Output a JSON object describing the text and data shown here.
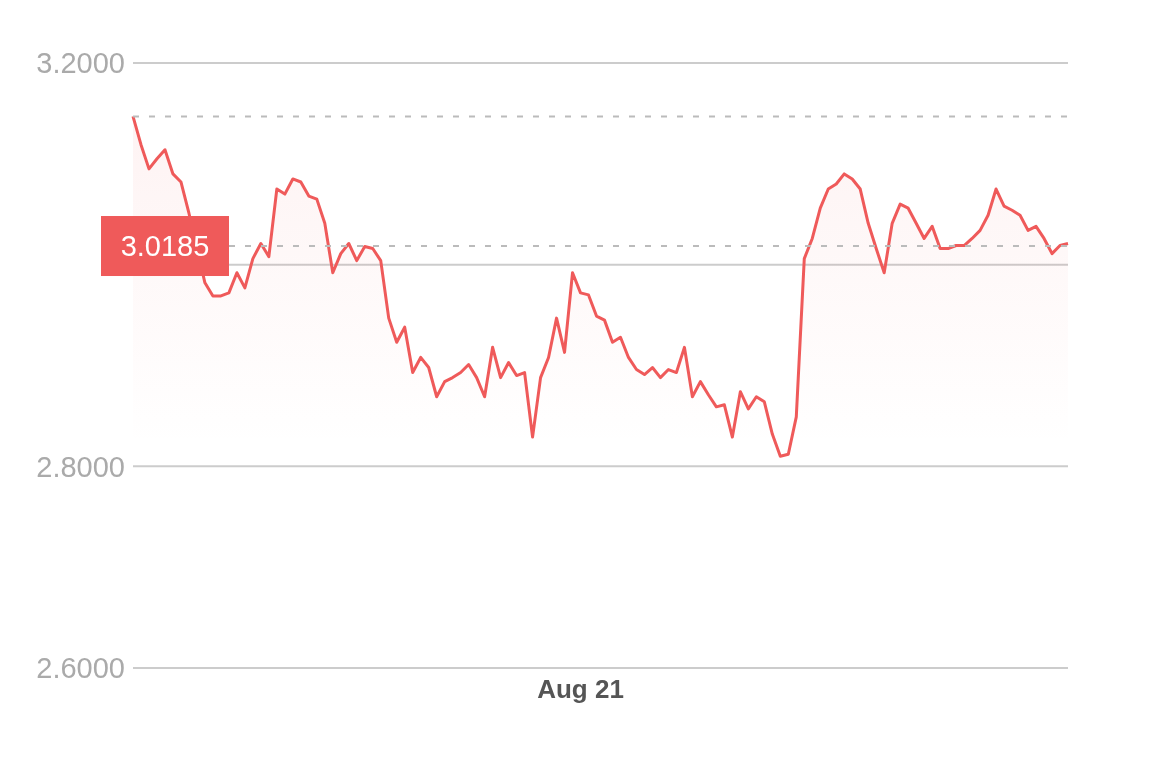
{
  "chart_data": {
    "type": "area",
    "categories": [
      null,
      null,
      null,
      null,
      null,
      null,
      null,
      null,
      null,
      null,
      null,
      null,
      null,
      null,
      null,
      null,
      null,
      null,
      null,
      null,
      null,
      null,
      null,
      null,
      null,
      null,
      null,
      null,
      null,
      null,
      null,
      null,
      null,
      null,
      null,
      null,
      null,
      null,
      null,
      null,
      null,
      null,
      null,
      null,
      null,
      null,
      null,
      null,
      null,
      null,
      null,
      null,
      null,
      null,
      null,
      null,
      "Aug 21",
      null,
      null,
      null,
      null,
      null,
      null,
      null,
      null,
      null,
      null,
      null,
      null,
      null,
      null,
      null,
      null,
      null,
      null,
      null,
      null,
      null,
      null,
      null,
      null,
      null,
      null,
      null,
      null,
      null,
      null,
      null,
      null,
      null,
      null,
      null,
      null,
      null,
      null,
      null,
      null,
      null,
      null,
      null,
      null,
      null,
      null,
      null,
      null,
      null,
      null,
      null,
      null,
      null,
      null,
      null,
      null,
      null,
      null,
      null,
      null,
      null
    ],
    "series": [
      {
        "color": "#ef5a5a",
        "values": [
          3.147,
          3.119,
          3.095,
          3.105,
          3.114,
          3.09,
          3.082,
          3.051,
          null,
          2.982,
          2.969,
          2.969,
          2.972,
          2.992,
          2.977,
          3.006,
          3.021,
          3.008,
          3.075,
          3.07,
          3.085,
          3.082,
          3.068,
          3.065,
          3.041,
          2.992,
          3.011,
          3.021,
          3.004,
          3.018,
          3.016,
          3.004,
          2.947,
          2.923,
          2.938,
          2.893,
          2.908,
          2.898,
          2.869,
          2.884,
          2.888,
          2.893,
          2.901,
          2.888,
          2.869,
          2.918,
          2.888,
          2.903,
          2.89,
          2.893,
          2.829,
          2.888,
          2.908,
          2.947,
          2.913,
          2.992,
          2.972,
          2.97,
          2.949,
          2.945,
          2.923,
          2.928,
          2.908,
          2.896,
          2.891,
          2.898,
          2.888,
          2.896,
          2.893,
          2.918,
          2.869,
          2.884,
          2.871,
          2.859,
          2.861,
          2.829,
          2.874,
          2.857,
          2.869,
          2.864,
          2.832,
          2.81,
          2.812,
          2.849,
          3.006,
          3.026,
          3.056,
          3.075,
          3.08,
          3.09,
          3.085,
          3.075,
          3.041,
          3.016,
          2.992,
          3.041,
          3.06,
          3.056,
          3.041,
          3.026,
          3.038,
          3.016,
          3.016,
          3.019,
          3.019,
          3.026,
          3.034,
          3.049,
          3.075,
          3.058,
          3.054,
          3.049,
          3.034,
          3.038,
          3.026,
          3.011,
          3.019,
          3.021
        ]
      }
    ],
    "ylim": [
      2.6,
      3.2
    ],
    "yticks": [
      {
        "value": 2.6,
        "label": "2.6000"
      },
      {
        "value": 2.8,
        "label": "2.8000"
      },
      {
        "value": 3.0,
        "label": null
      },
      {
        "value": 3.2,
        "label": "3.2000"
      }
    ],
    "grid": "y",
    "ref_lines": [
      {
        "axis": "y",
        "value": 3.147,
        "line_style": "dashed",
        "color": "#bbbbbb"
      },
      {
        "axis": "y",
        "value": 3.0185,
        "label": "3.0185",
        "line_style": "dashed",
        "color": "#bbbbbb"
      }
    ]
  }
}
